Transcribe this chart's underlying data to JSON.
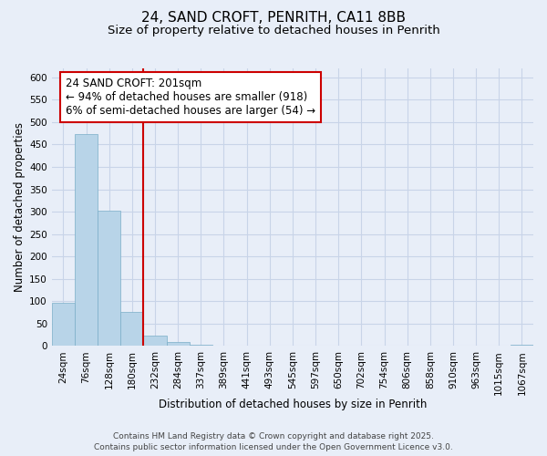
{
  "title": "24, SAND CROFT, PENRITH, CA11 8BB",
  "subtitle": "Size of property relative to detached houses in Penrith",
  "xlabel": "Distribution of detached houses by size in Penrith",
  "ylabel": "Number of detached properties",
  "bin_labels": [
    "24sqm",
    "76sqm",
    "128sqm",
    "180sqm",
    "232sqm",
    "284sqm",
    "337sqm",
    "389sqm",
    "441sqm",
    "493sqm",
    "545sqm",
    "597sqm",
    "650sqm",
    "702sqm",
    "754sqm",
    "806sqm",
    "858sqm",
    "910sqm",
    "963sqm",
    "1015sqm",
    "1067sqm"
  ],
  "bar_values": [
    97,
    473,
    302,
    77,
    24,
    8,
    3,
    0,
    1,
    0,
    0,
    0,
    0,
    0,
    0,
    0,
    0,
    0,
    0,
    0,
    2
  ],
  "bar_color": "#b8d4e8",
  "bar_edge_color": "#7aaec8",
  "vline_x_index": 3.5,
  "vline_color": "#cc0000",
  "ylim": [
    0,
    620
  ],
  "yticks": [
    0,
    50,
    100,
    150,
    200,
    250,
    300,
    350,
    400,
    450,
    500,
    550,
    600
  ],
  "annotation_title": "24 SAND CROFT: 201sqm",
  "annotation_line2": "← 94% of detached houses are smaller (918)",
  "annotation_line3": "6% of semi-detached houses are larger (54) →",
  "footnote_line1": "Contains HM Land Registry data © Crown copyright and database right 2025.",
  "footnote_line2": "Contains public sector information licensed under the Open Government Licence v3.0.",
  "background_color": "#e8eef8",
  "grid_color": "#c8d4e8",
  "title_fontsize": 11,
  "subtitle_fontsize": 9.5,
  "axis_label_fontsize": 8.5,
  "tick_fontsize": 7.5,
  "annotation_fontsize": 8.5,
  "footnote_fontsize": 6.5
}
